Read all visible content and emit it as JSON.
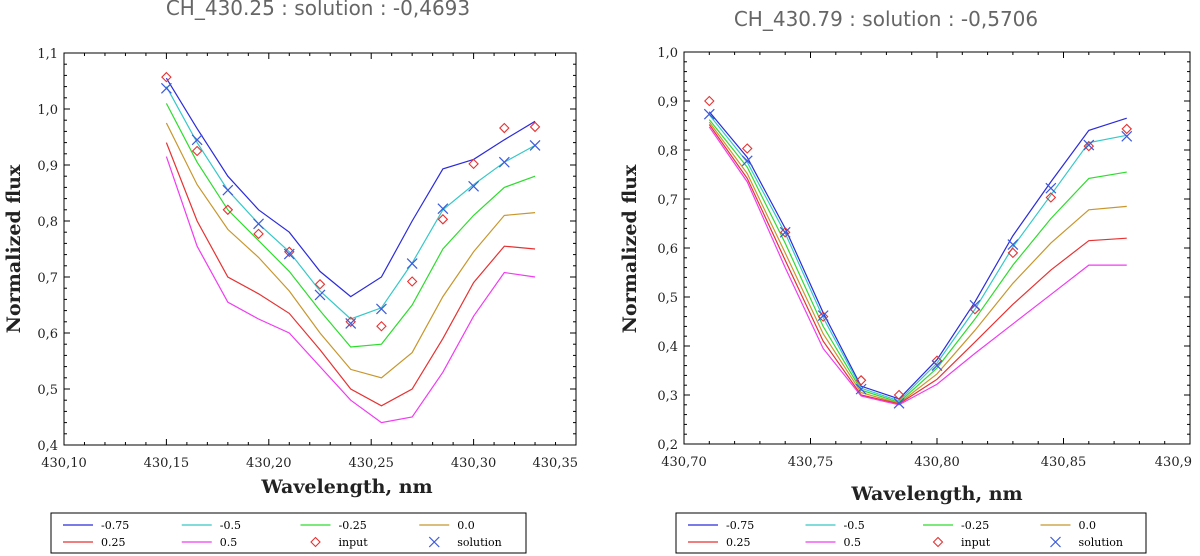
{
  "figure": {
    "legend_labels": [
      "-0.75",
      "-0.5",
      "-0.25",
      "0.0",
      "0.25",
      "0.5",
      "input",
      "solution"
    ],
    "colors": {
      "s075": "#2b2bdc",
      "s05": "#36c8c8",
      "s025": "#2ddc2d",
      "s00": "#c8962d",
      "p025": "#e63232",
      "p05": "#f03cf0",
      "input": "#e63232",
      "solution": "#3c5adc"
    }
  },
  "chart_data": [
    {
      "type": "line",
      "title": "CH_430.25 : solution : -0,4693",
      "xlabel": "Wavelength, nm",
      "ylabel": "Normalized flux",
      "xlim": [
        430.1,
        430.35
      ],
      "ylim": [
        0.4,
        1.1
      ],
      "xticks": [
        "430,10",
        "430,15",
        "430,20",
        "430,25",
        "430,30",
        "430,35"
      ],
      "yticks": [
        "0,4",
        "0,5",
        "0,6",
        "0,7",
        "0,8",
        "0,9",
        "1,0",
        "1,1"
      ],
      "x": [
        430.15,
        430.165,
        430.18,
        430.195,
        430.21,
        430.225,
        430.24,
        430.255,
        430.27,
        430.285,
        430.3,
        430.315,
        430.33
      ],
      "series": [
        {
          "name": "-0.75",
          "values": [
            1.055,
            0.965,
            0.88,
            0.82,
            0.78,
            0.71,
            0.665,
            0.7,
            0.8,
            0.893,
            0.91,
            0.945,
            0.978
          ]
        },
        {
          "name": "-0.5",
          "values": [
            1.04,
            0.94,
            0.855,
            0.795,
            0.745,
            0.675,
            0.625,
            0.645,
            0.725,
            0.82,
            0.865,
            0.905,
            0.935
          ]
        },
        {
          "name": "-0.25",
          "values": [
            1.01,
            0.905,
            0.82,
            0.765,
            0.71,
            0.64,
            0.575,
            0.58,
            0.65,
            0.75,
            0.81,
            0.86,
            0.88
          ]
        },
        {
          "name": "0.0",
          "values": [
            0.975,
            0.865,
            0.785,
            0.735,
            0.675,
            0.6,
            0.535,
            0.52,
            0.565,
            0.665,
            0.745,
            0.81,
            0.815
          ]
        },
        {
          "name": "0.25",
          "values": [
            0.94,
            0.8,
            0.7,
            0.67,
            0.635,
            0.57,
            0.5,
            0.47,
            0.5,
            0.59,
            0.69,
            0.755,
            0.75
          ]
        },
        {
          "name": "0.5",
          "values": [
            0.915,
            0.755,
            0.655,
            0.625,
            0.6,
            0.54,
            0.48,
            0.44,
            0.45,
            0.53,
            0.63,
            0.708,
            0.7
          ]
        }
      ],
      "input": [
        1.057,
        0.925,
        0.82,
        0.777,
        0.745,
        0.687,
        0.62,
        0.612,
        0.692,
        0.803,
        0.902,
        0.966,
        0.968
      ],
      "solution": [
        1.037,
        0.945,
        0.855,
        0.795,
        0.741,
        0.668,
        0.617,
        0.643,
        0.724,
        0.822,
        0.862,
        0.905,
        0.935
      ]
    },
    {
      "type": "line",
      "title": "CH_430.79 : solution : -0,5706",
      "xlabel": "Wavelength, nm",
      "ylabel": "Normalized flux",
      "xlim": [
        430.7,
        430.9
      ],
      "ylim": [
        0.2,
        1.0
      ],
      "xticks": [
        "430,70",
        "430,75",
        "430,80",
        "430,85",
        "430,9"
      ],
      "yticks": [
        "0,2",
        "0,3",
        "0,4",
        "0,5",
        "0,6",
        "0,7",
        "0,8",
        "0,9",
        "1,0"
      ],
      "x": [
        430.71,
        430.725,
        430.74,
        430.755,
        430.77,
        430.785,
        430.8,
        430.815,
        430.83,
        430.845,
        430.86,
        430.875
      ],
      "series": [
        {
          "name": "-0.75",
          "values": [
            0.878,
            0.785,
            0.64,
            0.468,
            0.318,
            0.292,
            0.372,
            0.49,
            0.625,
            0.735,
            0.84,
            0.865
          ]
        },
        {
          "name": "-0.5",
          "values": [
            0.872,
            0.775,
            0.63,
            0.458,
            0.314,
            0.288,
            0.365,
            0.475,
            0.602,
            0.708,
            0.815,
            0.83
          ]
        },
        {
          "name": "-0.25",
          "values": [
            0.862,
            0.765,
            0.61,
            0.44,
            0.31,
            0.285,
            0.355,
            0.455,
            0.565,
            0.66,
            0.742,
            0.755
          ]
        },
        {
          "name": "0.0",
          "values": [
            0.857,
            0.752,
            0.59,
            0.425,
            0.305,
            0.283,
            0.343,
            0.432,
            0.528,
            0.61,
            0.678,
            0.685
          ]
        },
        {
          "name": "0.25",
          "values": [
            0.852,
            0.742,
            0.575,
            0.41,
            0.3,
            0.282,
            0.332,
            0.408,
            0.485,
            0.555,
            0.615,
            0.62
          ]
        },
        {
          "name": "0.5",
          "values": [
            0.847,
            0.735,
            0.56,
            0.395,
            0.298,
            0.28,
            0.322,
            0.385,
            0.445,
            0.505,
            0.565,
            0.565
          ]
        }
      ],
      "input": [
        0.9,
        0.803,
        0.632,
        0.46,
        0.33,
        0.3,
        0.37,
        0.475,
        0.59,
        0.703,
        0.808,
        0.843
      ],
      "solution": [
        0.873,
        0.778,
        0.632,
        0.462,
        0.312,
        0.283,
        0.36,
        0.483,
        0.607,
        0.722,
        0.81,
        0.828
      ]
    }
  ]
}
